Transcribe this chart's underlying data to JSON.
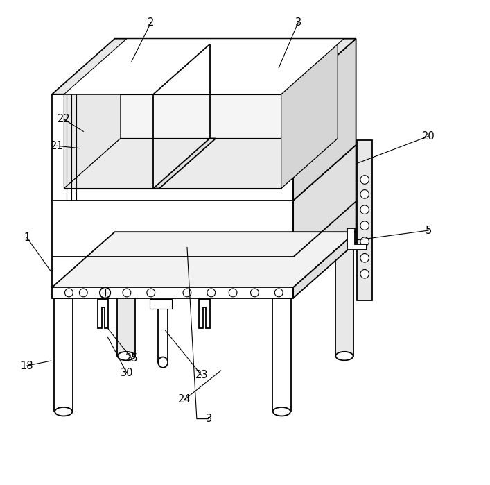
{
  "line_color": "#000000",
  "bg_color": "#ffffff",
  "lw": 1.3,
  "tlw": 0.8,
  "fs": 10.5,
  "ox": 0.13,
  "oy": 0.115
}
